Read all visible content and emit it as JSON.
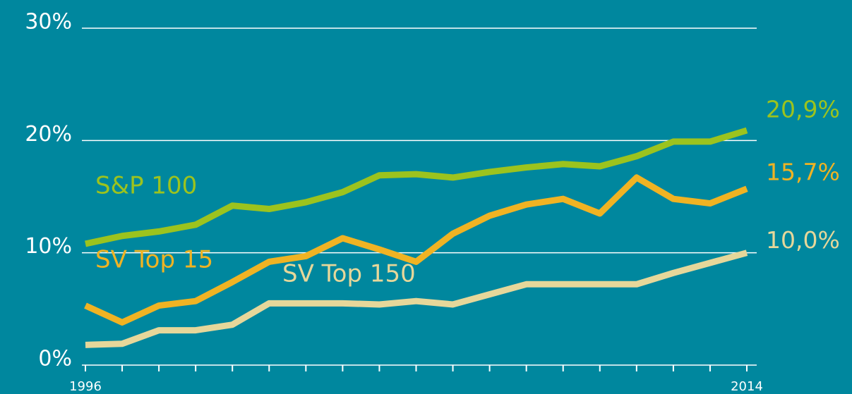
{
  "chart_data": {
    "type": "line",
    "categories": [
      "1996",
      null,
      null,
      null,
      null,
      null,
      null,
      null,
      null,
      null,
      null,
      null,
      null,
      null,
      null,
      null,
      null,
      null,
      "2014"
    ],
    "series": [
      {
        "name": "S&P 100",
        "color": "#9cc31e",
        "values": [
          10.8,
          11.5,
          11.9,
          12.5,
          14.2,
          13.9,
          14.5,
          15.4,
          16.9,
          17.0,
          16.7,
          17.2,
          17.6,
          17.9,
          17.7,
          18.6,
          19.9,
          19.9,
          20.9
        ],
        "value_labels": [
          null,
          null,
          null,
          null,
          null,
          null,
          null,
          null,
          null,
          null,
          null,
          null,
          null,
          null,
          null,
          null,
          null,
          null,
          "20,9%"
        ]
      },
      {
        "name": "SV Top 15",
        "color": "#f0b323",
        "values": [
          5.3,
          3.8,
          5.3,
          5.7,
          7.4,
          9.2,
          9.7,
          11.3,
          10.3,
          9.2,
          11.7,
          13.3,
          14.3,
          14.8,
          13.5,
          16.7,
          14.8,
          14.4,
          15.7
        ],
        "value_labels": [
          null,
          null,
          null,
          null,
          null,
          null,
          null,
          null,
          null,
          null,
          null,
          null,
          null,
          null,
          null,
          null,
          null,
          null,
          "15,7%"
        ]
      },
      {
        "name": "SV Top 150",
        "color": "#e6d79a",
        "values": [
          1.8,
          1.9,
          3.1,
          3.1,
          3.6,
          5.5,
          5.5,
          5.5,
          5.4,
          5.7,
          5.4,
          6.3,
          7.2,
          7.2,
          7.2,
          7.2,
          8.2,
          9.1,
          10.0
        ],
        "value_labels": [
          null,
          null,
          null,
          null,
          null,
          null,
          null,
          null,
          null,
          null,
          null,
          null,
          null,
          null,
          null,
          null,
          null,
          null,
          "10,0%"
        ]
      }
    ],
    "ylim": [
      0,
      30
    ],
    "yticks": [
      {
        "value": 0,
        "label": "0%"
      },
      {
        "value": 10,
        "label": "10%"
      },
      {
        "value": 20,
        "label": "20%"
      },
      {
        "value": 30,
        "label": "30%"
      }
    ],
    "grid": true
  }
}
